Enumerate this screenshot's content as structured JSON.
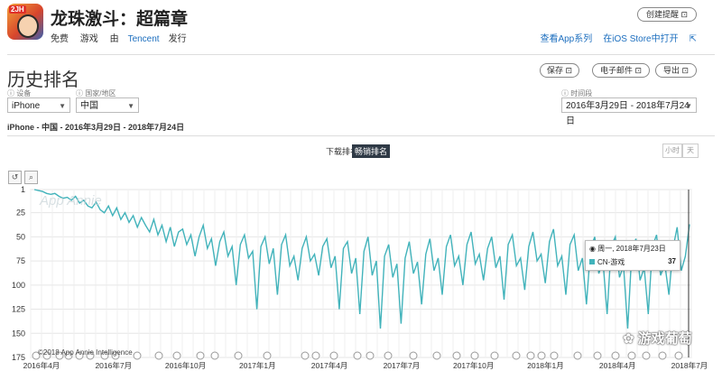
{
  "app": {
    "icon_badge": "2JH",
    "title": "龙珠激斗：超篇章",
    "price": "免费",
    "category": "游戏",
    "publisher_prefix": "由",
    "publisher": "Tencent",
    "publisher_suffix": "发行"
  },
  "header_actions": {
    "create_alert": "创建提醒",
    "view_series": "查看App系列",
    "open_ios": "在iOS Store中打开"
  },
  "section": {
    "title": "历史排名",
    "save": "保存",
    "email": "电子邮件",
    "export": "导出"
  },
  "filters": {
    "device_label": "设备",
    "device_value": "iPhone",
    "country_label": "国家/地区",
    "country_value": "中国",
    "period_label": "时间段",
    "period_value": "2016年3月29日 - 2018年7月24日"
  },
  "chart_subtitle": "iPhone - 中国 - 2016年3月29日 - 2018年7月24日",
  "tabs": {
    "download": "下载排名",
    "grossing": "畅销排名"
  },
  "granularity": {
    "hourly": "小时",
    "daily": "天"
  },
  "zoom": {
    "reset_icon": "undo-icon",
    "zoom_icon": "magnifier-icon"
  },
  "tooltip": {
    "date": "周一, 2018年7月23日",
    "series": "CN-游戏",
    "value": "37"
  },
  "copyright": "©2018 App Annie Intelligence",
  "watermark": "App Annie",
  "brand_watermark": "游戏葡萄",
  "colors": {
    "line": "#42b3bb",
    "selected_tab": "#2f3a46"
  },
  "chart_data": {
    "type": "line",
    "y_reversed": true,
    "ylim": [
      1,
      175
    ],
    "yticks": [
      "1",
      "25",
      "50",
      "75",
      "100",
      "125",
      "150",
      "175"
    ],
    "x_start": "2016-03-29",
    "x_end": "2018-07-24",
    "xticks": [
      "2016年4月",
      "2016年7月",
      "2016年10月",
      "2017年1月",
      "2017年4月",
      "2017年7月",
      "2017年10月",
      "2018年1月",
      "2018年4月",
      "2018年7月"
    ],
    "grid": true,
    "series": [
      {
        "name": "CN-游戏",
        "values": [
          1,
          2,
          3,
          5,
          6,
          5,
          8,
          10,
          9,
          12,
          8,
          15,
          12,
          18,
          20,
          14,
          22,
          25,
          18,
          28,
          20,
          32,
          25,
          35,
          28,
          40,
          30,
          38,
          45,
          32,
          48,
          38,
          55,
          40,
          60,
          45,
          42,
          58,
          48,
          70,
          50,
          38,
          62,
          52,
          80,
          55,
          45,
          70,
          60,
          100,
          58,
          48,
          72,
          65,
          125,
          60,
          50,
          78,
          62,
          110,
          58,
          48,
          80,
          70,
          95,
          62,
          50,
          75,
          68,
          90,
          60,
          52,
          82,
          70,
          125,
          62,
          55,
          88,
          72,
          130,
          65,
          50,
          90,
          75,
          145,
          70,
          58,
          92,
          78,
          140,
          72,
          55,
          88,
          76,
          120,
          68,
          52,
          85,
          72,
          110,
          60,
          48,
          80,
          70,
          100,
          58,
          45,
          78,
          68,
          95,
          62,
          50,
          82,
          70,
          115,
          58,
          48,
          80,
          72,
          105,
          60,
          45,
          75,
          68,
          98,
          55,
          42,
          80,
          70,
          110,
          58,
          48,
          85,
          72,
          120,
          62,
          50,
          88,
          75,
          130,
          60,
          50,
          92,
          80,
          145,
          65,
          52,
          95,
          82,
          130,
          60,
          48,
          90,
          78,
          110,
          62,
          40,
          85,
          70,
          37
        ]
      }
    ]
  }
}
